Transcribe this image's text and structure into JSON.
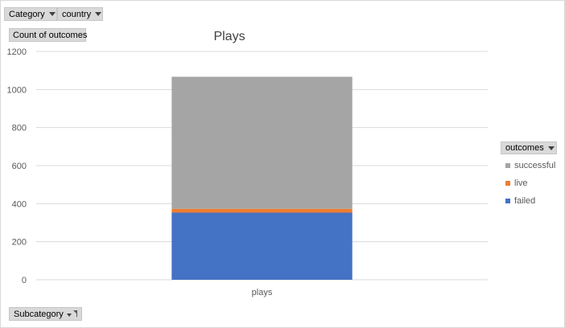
{
  "filters": {
    "category_label": "Category",
    "country_label": "country",
    "subcategory_label": "Subcategory"
  },
  "values_field": {
    "label": "Count of outcomes"
  },
  "legend": {
    "field_label": "outcomes"
  },
  "colors": {
    "successful": "#a5a5a5",
    "live": "#ed7d31",
    "failed": "#4472c4",
    "grid": "#d9d9d9",
    "axis_text": "#595959"
  },
  "chart_data": {
    "type": "bar",
    "stacked": true,
    "title": "Plays",
    "categories": [
      "plays"
    ],
    "series": [
      {
        "name": "failed",
        "values": [
          353
        ]
      },
      {
        "name": "live",
        "values": [
          20
        ]
      },
      {
        "name": "successful",
        "values": [
          694
        ]
      }
    ],
    "ylim": [
      0,
      1200
    ],
    "yticks": [
      "0",
      "200",
      "400",
      "600",
      "800",
      "1000",
      "1200"
    ],
    "grid": true,
    "legend_position": "right"
  }
}
